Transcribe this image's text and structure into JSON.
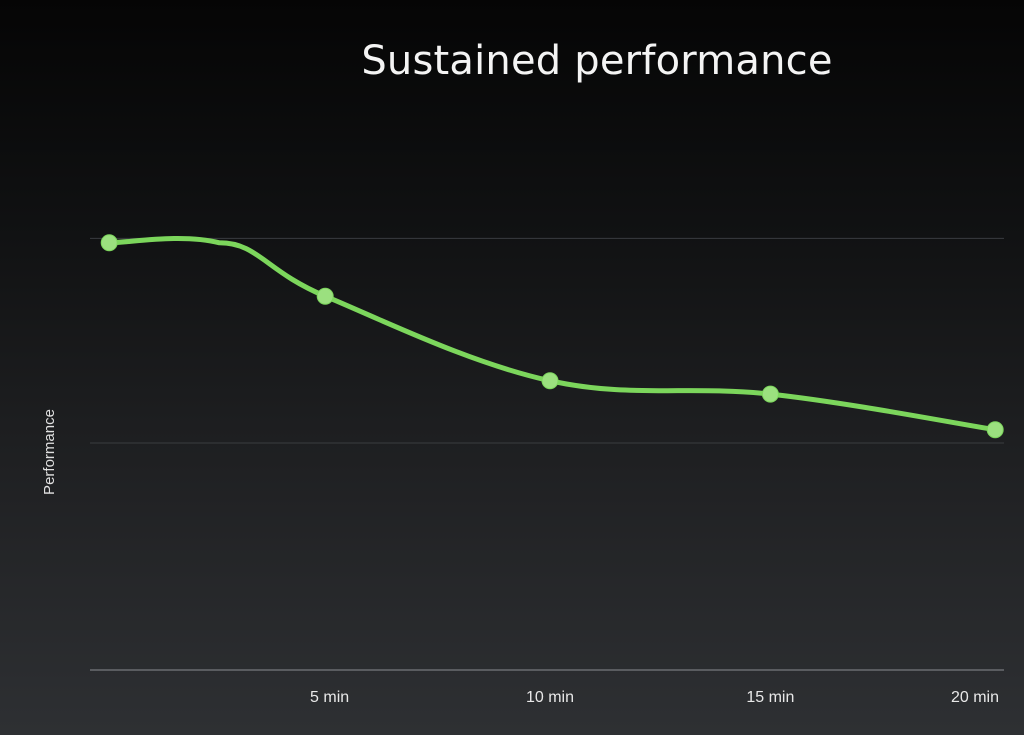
{
  "chart_data": {
    "type": "line",
    "title": "Sustained performance",
    "xlabel": "",
    "ylabel": "Performance",
    "x_unit": "min",
    "x_ticks": [
      {
        "value": 5,
        "label": "5 min"
      },
      {
        "value": 10,
        "label": "10 min"
      },
      {
        "value": 15,
        "label": "15 min"
      },
      {
        "value": 20,
        "label": "20 min"
      }
    ],
    "xlim": [
      -0.3,
      20.3
    ],
    "ylim": [
      0,
      1
    ],
    "grid": "horizontal",
    "legend": "none",
    "series": [
      {
        "color": "#7cd65c",
        "points": [
          {
            "x": 0,
            "y": 0.96,
            "marker": true
          },
          {
            "x": 2.5,
            "y": 0.96,
            "marker": false
          },
          {
            "x": 4.9,
            "y": 0.84,
            "marker": true
          },
          {
            "x": 10,
            "y": 0.65,
            "marker": true
          },
          {
            "x": 15,
            "y": 0.62,
            "marker": true
          },
          {
            "x": 20.1,
            "y": 0.54,
            "marker": true
          }
        ]
      }
    ],
    "gridlines_y": [
      0,
      0.51,
      0.97
    ]
  }
}
